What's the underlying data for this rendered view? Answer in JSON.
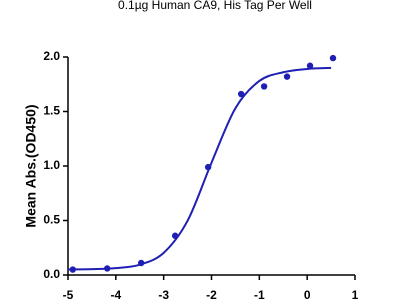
{
  "chart_data": {
    "type": "scatter",
    "title": "0.1µg Human CA9, His Tag Per Well",
    "y_label": "Mean Abs.(OD450)",
    "xlim": [
      -5,
      1
    ],
    "xticks": [
      -5,
      -4,
      -3,
      -2,
      -1,
      0,
      1
    ],
    "ylim": [
      0,
      2
    ],
    "yticks": [
      {
        "value": 0,
        "label": "0.0"
      },
      {
        "value": 0.5,
        "label": "0.5"
      },
      {
        "value": 1,
        "label": "1.0"
      },
      {
        "value": 1.5,
        "label": "1.5"
      },
      {
        "value": 2,
        "label": "2.0"
      }
    ],
    "series": [
      {
        "type": "scatter",
        "color": "#1f1fb4",
        "x": [
          -4.9,
          -4.18,
          -3.47,
          -2.76,
          -2.07,
          -1.38,
          -0.9,
          -0.42,
          0.06,
          0.54
        ],
        "values": [
          0.05,
          0.06,
          0.11,
          0.36,
          0.99,
          1.66,
          1.73,
          1.82,
          1.92,
          1.99
        ]
      },
      {
        "type": "line",
        "color": "#1f1fb4",
        "x": [
          -5,
          -4.5,
          -4,
          -3.5,
          -3,
          -2.5,
          -2,
          -1.5,
          -1,
          -0.5,
          0,
          0.5
        ],
        "values": [
          0.051,
          0.054,
          0.063,
          0.095,
          0.203,
          0.498,
          1.03,
          1.53,
          1.78,
          1.86,
          1.89,
          1.9
        ]
      }
    ]
  }
}
